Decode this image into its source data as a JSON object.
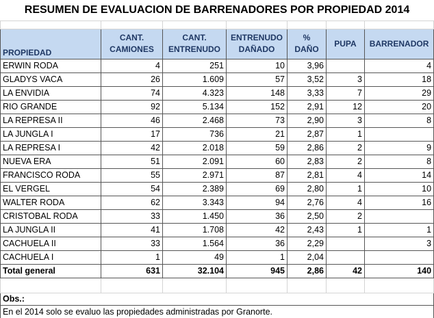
{
  "title": "RESUMEN DE EVALUACION DE BARRENADORES POR PROPIEDAD 2014",
  "table": {
    "header": [
      [
        "PROPIEDAD"
      ],
      [
        "CANT.",
        "CAMIONES"
      ],
      [
        "CANT.",
        "ENTRENUDO"
      ],
      [
        "ENTRENUDO",
        "DAÑADO"
      ],
      [
        "%",
        "DAÑO"
      ],
      [
        "PUPA"
      ],
      [
        "BARRENADOR"
      ]
    ],
    "rows": [
      [
        "ERWIN RODA",
        "4",
        "251",
        "10",
        "3,96",
        null,
        "4"
      ],
      [
        "GLADYS VACA",
        "26",
        "1.609",
        "57",
        "3,52",
        "3",
        "18"
      ],
      [
        "LA ENVIDIA",
        "74",
        "4.323",
        "148",
        "3,33",
        "7",
        "29"
      ],
      [
        "RIO GRANDE",
        "92",
        "5.134",
        "152",
        "2,91",
        "12",
        "20"
      ],
      [
        "LA REPRESA II",
        "46",
        "2.468",
        "73",
        "2,90",
        "3",
        "8"
      ],
      [
        "LA JUNGLA I",
        "17",
        "736",
        "21",
        "2,87",
        "1",
        null
      ],
      [
        "LA REPRESA I",
        "42",
        "2.018",
        "59",
        "2,86",
        "2",
        "9"
      ],
      [
        "NUEVA ERA",
        "51",
        "2.091",
        "60",
        "2,83",
        "2",
        "8"
      ],
      [
        "FRANCISCO RODA",
        "55",
        "2.971",
        "87",
        "2,81",
        "4",
        "14"
      ],
      [
        "EL VERGEL",
        "54",
        "2.389",
        "69",
        "2,80",
        "1",
        "10"
      ],
      [
        "WALTER RODA",
        "62",
        "3.343",
        "94",
        "2,76",
        "4",
        "16"
      ],
      [
        "CRISTOBAL RODA",
        "33",
        "1.450",
        "36",
        "2,50",
        "2",
        null
      ],
      [
        "LA JUNGLA II",
        "41",
        "1.708",
        "42",
        "2,43",
        "1",
        "1"
      ],
      [
        "CACHUELA II",
        "33",
        "1.564",
        "36",
        "2,29",
        null,
        "3"
      ],
      [
        "CACHUELA I",
        "1",
        "49",
        "1",
        "2,04",
        null,
        null
      ]
    ],
    "total": [
      "Total general",
      "631",
      "32.104",
      "945",
      "2,86",
      "42",
      "140"
    ]
  },
  "notes": {
    "label": "Obs.:",
    "text": "En el 2014 solo se evaluo las propiedades administradas por Granorte."
  }
}
